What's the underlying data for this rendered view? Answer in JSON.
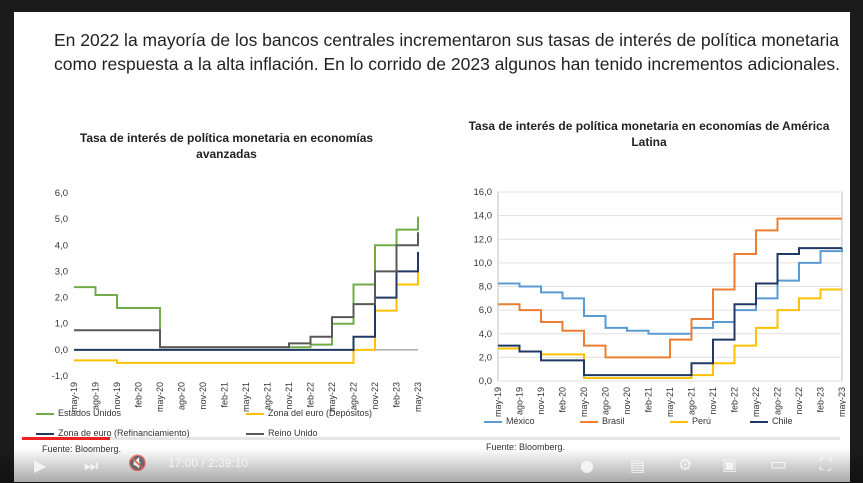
{
  "slide": {
    "headline": "En 2022 la mayoría de los bancos centrales incrementaron sus tasas de interés de política monetaria como respuesta a la alta inflación. En lo corrido de 2023 algunos han tenido incrementos adicionales."
  },
  "chart_data": [
    {
      "type": "line",
      "title": "Tasa de interés de política monetaria en economías avanzadas",
      "categories": [
        "may-19",
        "ago-19",
        "nov-19",
        "feb-20",
        "may-20",
        "ago-20",
        "nov-20",
        "feb-21",
        "may-21",
        "ago-21",
        "nov-21",
        "feb-22",
        "may-22",
        "ago-22",
        "nov-22",
        "feb-23",
        "may-23"
      ],
      "ylim": [
        -1.0,
        6.0
      ],
      "yticks": [
        "6,0",
        "5,0",
        "4,0",
        "3,0",
        "2,0",
        "1,0",
        "0,0",
        "-1,0"
      ],
      "legend_placement": "bottom",
      "series": [
        {
          "name": "Estados Unidos",
          "color": "#70ad47",
          "values": [
            2.4,
            2.1,
            1.6,
            1.6,
            0.1,
            0.1,
            0.1,
            0.1,
            0.1,
            0.1,
            0.1,
            0.2,
            1.0,
            2.5,
            4.0,
            4.6,
            5.1
          ]
        },
        {
          "name": "Zona del euro (Depósitos)",
          "color": "#ffc000",
          "values": [
            -0.4,
            -0.4,
            -0.5,
            -0.5,
            -0.5,
            -0.5,
            -0.5,
            -0.5,
            -0.5,
            -0.5,
            -0.5,
            -0.5,
            -0.5,
            0.0,
            1.5,
            2.5,
            3.25
          ]
        },
        {
          "name": "Zona de euro (Refinanciamiento)",
          "color": "#1f3864",
          "values": [
            0.0,
            0.0,
            0.0,
            0.0,
            0.0,
            0.0,
            0.0,
            0.0,
            0.0,
            0.0,
            0.0,
            0.0,
            0.0,
            0.5,
            2.0,
            3.0,
            3.75
          ]
        },
        {
          "name": "Reino Unido",
          "color": "#595959",
          "values": [
            0.75,
            0.75,
            0.75,
            0.75,
            0.1,
            0.1,
            0.1,
            0.1,
            0.1,
            0.1,
            0.25,
            0.5,
            1.25,
            1.75,
            3.0,
            4.0,
            4.5
          ]
        }
      ],
      "source": "Fuente: Bloomberg."
    },
    {
      "type": "line",
      "title": "Tasa de interés de política monetaria en economías de América Latina",
      "categories": [
        "may-19",
        "ago-19",
        "nov-19",
        "feb-20",
        "may-20",
        "ago-20",
        "nov-20",
        "feb-21",
        "may-21",
        "ago-21",
        "nov-21",
        "feb-22",
        "may-22",
        "ago-22",
        "nov-22",
        "feb-23",
        "may-23"
      ],
      "ylim": [
        0.0,
        16.0
      ],
      "yticks": [
        "16,0",
        "14,0",
        "12,0",
        "10,0",
        "8,0",
        "6,0",
        "4,0",
        "2,0",
        "0,0"
      ],
      "legend_placement": "bottom",
      "series": [
        {
          "name": "México",
          "color": "#5b9bd5",
          "values": [
            8.25,
            8.0,
            7.5,
            7.0,
            5.5,
            4.5,
            4.25,
            4.0,
            4.0,
            4.5,
            5.0,
            6.0,
            7.0,
            8.5,
            10.0,
            11.0,
            11.25
          ]
        },
        {
          "name": "Brasil",
          "color": "#ed7d31",
          "values": [
            6.5,
            6.0,
            5.0,
            4.25,
            3.0,
            2.0,
            2.0,
            2.0,
            3.5,
            5.25,
            7.75,
            10.75,
            12.75,
            13.75,
            13.75,
            13.75,
            13.75
          ]
        },
        {
          "name": "Perú",
          "color": "#ffc000",
          "values": [
            2.75,
            2.5,
            2.25,
            2.25,
            0.25,
            0.25,
            0.25,
            0.25,
            0.25,
            0.5,
            1.5,
            3.0,
            4.5,
            6.0,
            7.0,
            7.75,
            7.75
          ]
        },
        {
          "name": "Chile",
          "color": "#1f3864",
          "values": [
            3.0,
            2.5,
            1.75,
            1.75,
            0.5,
            0.5,
            0.5,
            0.5,
            0.5,
            1.5,
            3.5,
            6.5,
            8.25,
            10.75,
            11.25,
            11.25,
            11.25
          ]
        }
      ],
      "source": "Fuente: Bloomberg."
    }
  ],
  "player": {
    "timecode": "17:00 / 2:39:10",
    "progress_fraction": 0.107,
    "controls": {
      "play": "▶",
      "next": "⏭",
      "mute": "🔇",
      "toggle": "●",
      "subtitles": "▤",
      "settings": "⚙",
      "miniplayer": "▣",
      "theater": "▭",
      "fullscreen": "⛶"
    }
  }
}
